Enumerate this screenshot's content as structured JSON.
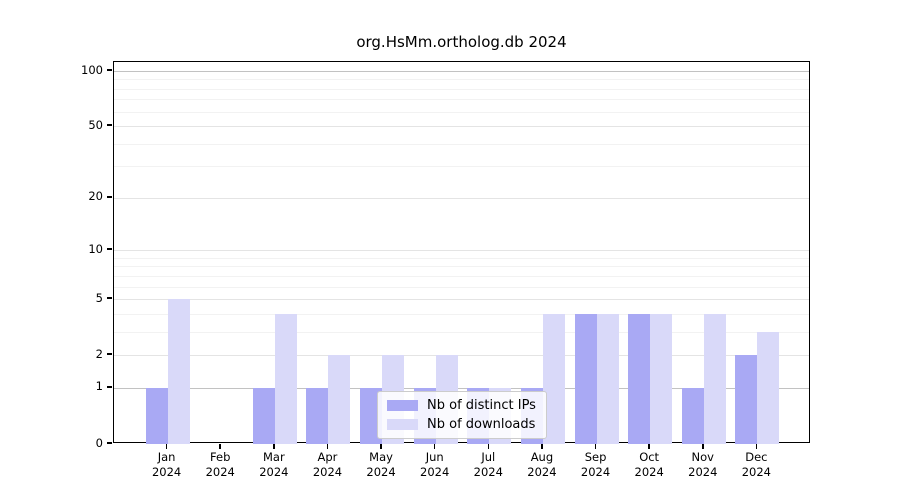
{
  "title": "org.HsMm.ortholog.db 2024",
  "chart_data": {
    "type": "bar",
    "title": "org.HsMm.ortholog.db 2024",
    "categories": [
      "Jan",
      "Feb",
      "Mar",
      "Apr",
      "May",
      "Jun",
      "Jul",
      "Aug",
      "Sep",
      "Oct",
      "Nov",
      "Dec"
    ],
    "year_label": "2024",
    "series": [
      {
        "name": "Nb of distinct IPs",
        "color": "#a9a9f4",
        "values": [
          1,
          0,
          1,
          1,
          1,
          1,
          1,
          1,
          4,
          4,
          1,
          2
        ]
      },
      {
        "name": "Nb of downloads",
        "color": "#d9d9f9",
        "values": [
          5,
          0,
          4,
          2,
          2,
          2,
          1,
          4,
          4,
          4,
          4,
          3
        ]
      }
    ],
    "yscale": "log10(value+1)",
    "ylim": [
      0,
      112
    ],
    "xlabel": "",
    "ylabel": "",
    "y_ticks_labeled": [
      0,
      1,
      2,
      5,
      10,
      20,
      50,
      100
    ],
    "y_ticks_minor": [
      3,
      4,
      6,
      7,
      8,
      9,
      30,
      40,
      60,
      70,
      80,
      90
    ],
    "grid": true,
    "legend_position": "lower center"
  },
  "legend": {
    "items": [
      {
        "label": "Nb of distinct IPs",
        "color": "#a9a9f4"
      },
      {
        "label": "Nb of downloads",
        "color": "#d9d9f9"
      }
    ]
  },
  "colors": {
    "grid_major_emphasis": "#c2c2c2",
    "grid_labeled": "#e4e4e4",
    "grid_minor": "#f2f2f2",
    "axis": "#000000"
  }
}
